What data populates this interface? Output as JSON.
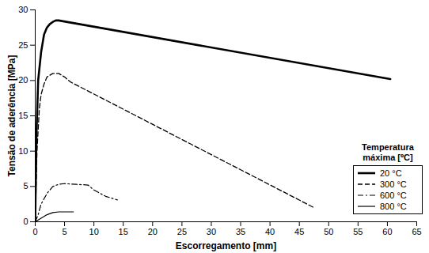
{
  "chart_data": {
    "type": "line",
    "x_label": "Escorregamento [mm]",
    "y_label": "Tensão de aderência [MPa]",
    "legend_title": "Temperatura máxima [ºC]",
    "legend": "right",
    "xlim": [
      0,
      65
    ],
    "xticks": [
      0,
      5,
      10,
      15,
      20,
      25,
      30,
      35,
      40,
      45,
      50,
      55,
      60,
      65
    ],
    "ylim": [
      0,
      30
    ],
    "yticks": [
      0,
      5,
      10,
      15,
      20,
      25,
      30
    ],
    "grid": false,
    "series": [
      {
        "name": "20 °C",
        "color": "#000000",
        "line_style": "solid",
        "x": [
          0,
          0.2,
          0.5,
          1,
          1.5,
          2,
          2.5,
          3,
          3.5,
          4,
          60.5
        ],
        "values": [
          0,
          12,
          20,
          24,
          26.5,
          27.5,
          28,
          28.3,
          28.5,
          28.5,
          20.2
        ]
      },
      {
        "name": "300 °C",
        "color": "#000000",
        "line_style": "dashed",
        "x": [
          0,
          0.3,
          0.7,
          1,
          1.5,
          2,
          3,
          4,
          5,
          6,
          47.5
        ],
        "values": [
          0,
          10,
          16,
          18,
          19.5,
          20.5,
          21,
          21,
          20.5,
          19.8,
          2
        ]
      },
      {
        "name": "600 °C",
        "color": "#000000",
        "line_style": "dashdot",
        "x": [
          0,
          0.5,
          1,
          2,
          3,
          4,
          5,
          7,
          9,
          10,
          12,
          14
        ],
        "values": [
          0,
          1,
          2.5,
          4,
          5,
          5.3,
          5.4,
          5.3,
          5.2,
          4.5,
          3.6,
          3.1
        ]
      },
      {
        "name": "800 °C",
        "color": "#000000",
        "line_style": "solid",
        "x": [
          0,
          1,
          2,
          3,
          4,
          6.5
        ],
        "values": [
          0,
          0.5,
          1,
          1.3,
          1.4,
          1.4
        ]
      }
    ]
  }
}
